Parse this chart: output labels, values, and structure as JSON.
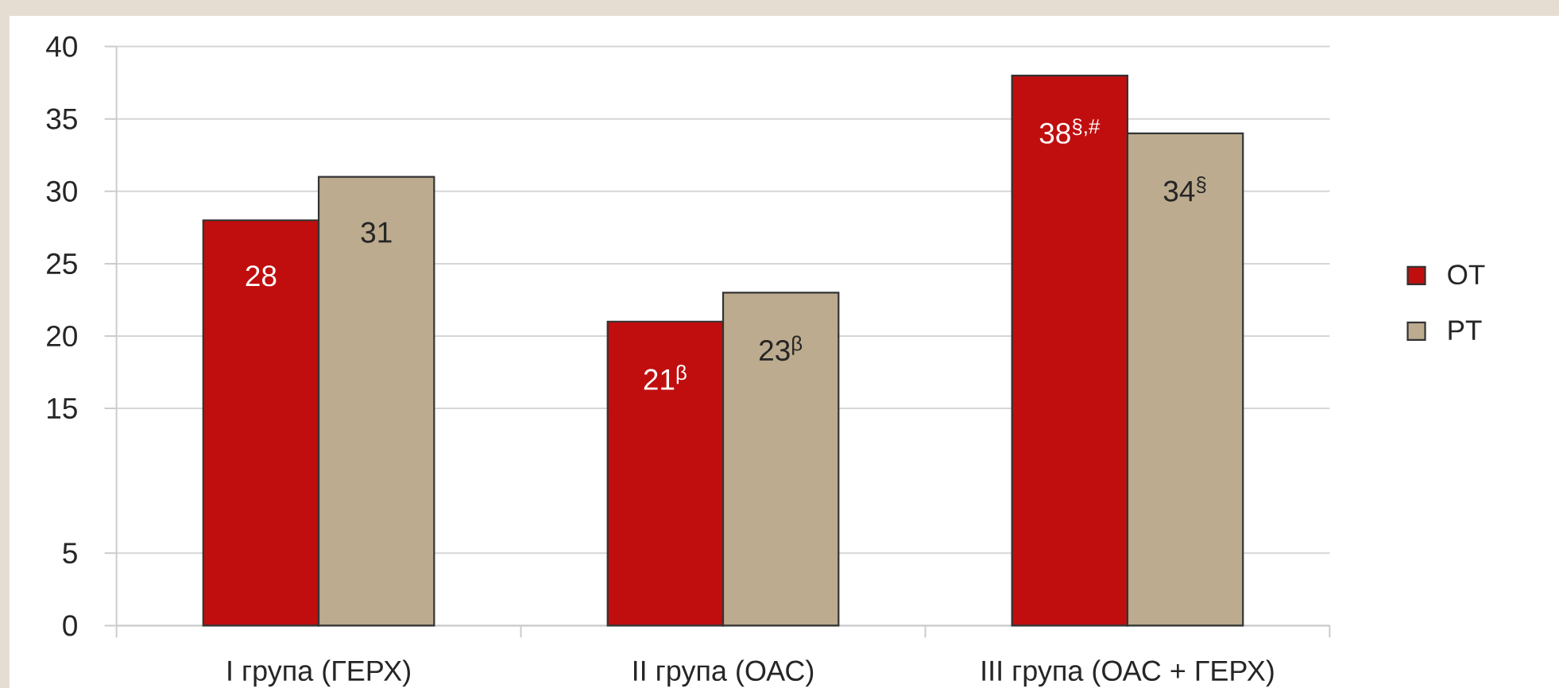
{
  "chart_data": {
    "type": "bar",
    "categories": [
      "I група (ГЕРХ)",
      "II  група (ОАС)",
      "III група (ОАС + ГЕРХ)"
    ],
    "series": [
      {
        "name": "OT",
        "color": "#c00e0e",
        "values": [
          28,
          21,
          38
        ],
        "value_labels": [
          "28",
          "21$^{β}$",
          "38$^{§,#}$"
        ]
      },
      {
        "name": "PT",
        "color": "#bcab8e",
        "values": [
          31,
          23,
          34
        ],
        "value_labels": [
          "31",
          "23$^{β}$",
          "34$^{§}$"
        ]
      }
    ],
    "ylim": [
      0,
      40
    ],
    "yticks": [
      0,
      5,
      15,
      20,
      25,
      30,
      35,
      40
    ],
    "grid": "y",
    "legend": "right"
  }
}
